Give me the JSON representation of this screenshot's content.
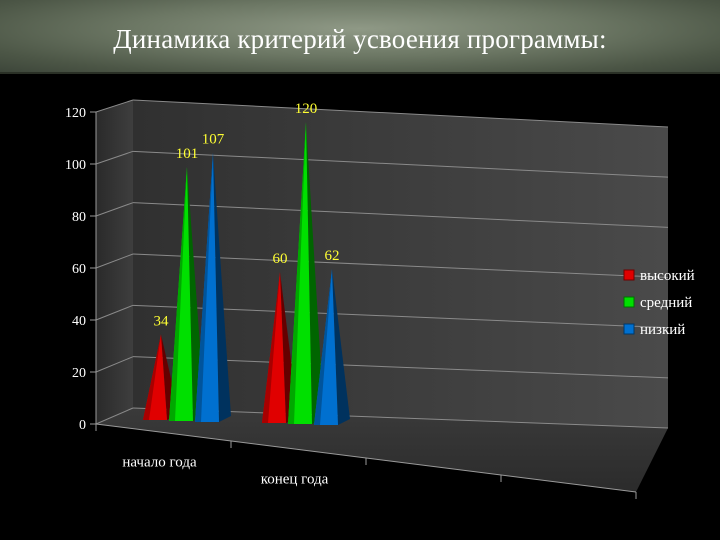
{
  "slide": {
    "title": "Динамика критерий усвоения программы:"
  },
  "chart_data": {
    "type": "bar",
    "style": "3d-pyramid",
    "title": "",
    "categories": [
      "начало года",
      "конец года"
    ],
    "series": [
      {
        "name": "высокий",
        "values": [
          34,
          60
        ],
        "color": "#e00000"
      },
      {
        "name": "средний",
        "values": [
          101,
          120
        ],
        "color": "#00e000"
      },
      {
        "name": "низкий",
        "values": [
          107,
          62
        ],
        "color": "#0070d0"
      }
    ],
    "ylim": [
      0,
      120
    ],
    "yticks": [
      0,
      20,
      40,
      60,
      80,
      100,
      120
    ],
    "grid": true,
    "legend": "right",
    "data_labels": true,
    "label_color": "#ffff33"
  }
}
